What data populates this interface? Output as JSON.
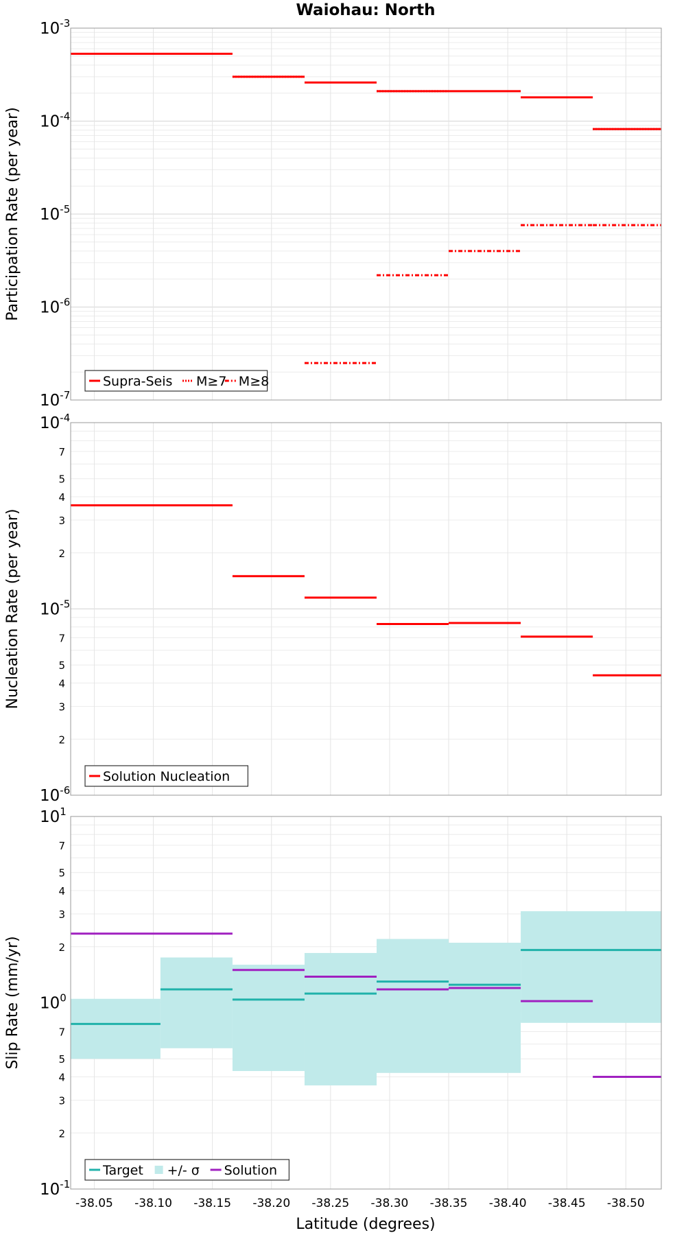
{
  "title": "Waiohau: North",
  "x_axis": {
    "label": "Latitude (degrees)",
    "range": [
      -38.03,
      -38.53
    ],
    "ticks": [
      -38.05,
      -38.1,
      -38.15,
      -38.2,
      -38.25,
      -38.3,
      -38.35,
      -38.4,
      -38.45,
      -38.5
    ],
    "tick_labels": [
      "-38.05",
      "-38.10",
      "-38.15",
      "-38.20",
      "-38.25",
      "-38.30",
      "-38.35",
      "-38.40",
      "-38.45",
      "-38.50"
    ]
  },
  "chart_data": [
    {
      "type": "line",
      "id": "participation",
      "title": "Waiohau: North",
      "ylabel": "Participation Rate (per year)",
      "yscale": "log",
      "ylim": [
        1e-07,
        0.001
      ],
      "major_ticks": [
        {
          "value": 1e-07,
          "base": "10",
          "exp": "-7"
        },
        {
          "value": 1e-06,
          "base": "10",
          "exp": "-6"
        },
        {
          "value": 1e-05,
          "base": "10",
          "exp": "-5"
        },
        {
          "value": 0.0001,
          "base": "10",
          "exp": "-4"
        },
        {
          "value": 0.001,
          "base": "10",
          "exp": "-3"
        }
      ],
      "minor_labels": [],
      "legend": {
        "position": "bottom-left",
        "entries": [
          "Supra-Seis",
          "M≥7",
          "M≥8"
        ]
      },
      "series": [
        {
          "name": "Supra-Seis",
          "color": "#ff0000",
          "dash": "solid",
          "segments": [
            [
              -38.03,
              -38.167,
              0.00053
            ],
            [
              -38.167,
              -38.228,
              0.0003
            ],
            [
              -38.228,
              -38.289,
              0.00026
            ],
            [
              -38.289,
              -38.35,
              0.00021
            ],
            [
              -38.35,
              -38.411,
              0.00021
            ],
            [
              -38.411,
              -38.472,
              0.00018
            ],
            [
              -38.472,
              -38.53,
              8.2e-05
            ]
          ]
        },
        {
          "name": "M≥7",
          "color": "#ff0000",
          "dash": "dotted",
          "segments": [
            [
              -38.167,
              -38.228,
              0.0003
            ],
            [
              -38.289,
              -38.35,
              0.00021
            ],
            [
              -38.472,
              -38.53,
              8.2e-05
            ]
          ]
        },
        {
          "name": "M≥8",
          "color": "#ff0000",
          "dash": "dashdot",
          "segments": [
            [
              -38.228,
              -38.289,
              2.5e-07
            ],
            [
              -38.289,
              -38.35,
              2.2e-06
            ],
            [
              -38.35,
              -38.411,
              4e-06
            ],
            [
              -38.411,
              -38.472,
              7.6e-06
            ],
            [
              -38.472,
              -38.53,
              7.6e-06
            ]
          ]
        }
      ]
    },
    {
      "type": "line",
      "id": "nucleation",
      "ylabel": "Nucleation Rate (per year)",
      "yscale": "log",
      "ylim": [
        1e-06,
        0.0001
      ],
      "major_ticks": [
        {
          "value": 1e-06,
          "base": "10",
          "exp": "-6"
        },
        {
          "value": 1e-05,
          "base": "10",
          "exp": "-5"
        },
        {
          "value": 0.0001,
          "base": "10",
          "exp": "-4"
        }
      ],
      "minor_labels": [
        {
          "value": 2e-06,
          "label": "2"
        },
        {
          "value": 3e-06,
          "label": "3"
        },
        {
          "value": 4e-06,
          "label": "4"
        },
        {
          "value": 5e-06,
          "label": "5"
        },
        {
          "value": 7e-06,
          "label": "7"
        },
        {
          "value": 2e-05,
          "label": "2"
        },
        {
          "value": 3e-05,
          "label": "3"
        },
        {
          "value": 4e-05,
          "label": "4"
        },
        {
          "value": 5e-05,
          "label": "5"
        },
        {
          "value": 7e-05,
          "label": "7"
        }
      ],
      "legend": {
        "position": "bottom-left",
        "entries": [
          "Solution Nucleation"
        ]
      },
      "series": [
        {
          "name": "Solution Nucleation",
          "color": "#ff0000",
          "dash": "solid",
          "segments": [
            [
              -38.03,
              -38.167,
              3.6e-05
            ],
            [
              -38.167,
              -38.228,
              1.5e-05
            ],
            [
              -38.228,
              -38.289,
              1.15e-05
            ],
            [
              -38.289,
              -38.35,
              8.3e-06
            ],
            [
              -38.35,
              -38.411,
              8.4e-06
            ],
            [
              -38.411,
              -38.472,
              7.1e-06
            ],
            [
              -38.472,
              -38.53,
              4.4e-06
            ]
          ]
        }
      ]
    },
    {
      "type": "line",
      "id": "slip",
      "ylabel": "Slip Rate (mm/yr)",
      "yscale": "log",
      "ylim": [
        0.1,
        10
      ],
      "major_ticks": [
        {
          "value": 0.1,
          "base": "10",
          "exp": "-1"
        },
        {
          "value": 1,
          "base": "10",
          "exp": "0"
        },
        {
          "value": 10,
          "base": "10",
          "exp": "1"
        }
      ],
      "minor_labels": [
        {
          "value": 0.2,
          "label": "2"
        },
        {
          "value": 0.3,
          "label": "3"
        },
        {
          "value": 0.4,
          "label": "4"
        },
        {
          "value": 0.5,
          "label": "5"
        },
        {
          "value": 0.7,
          "label": "7"
        },
        {
          "value": 2,
          "label": "2"
        },
        {
          "value": 3,
          "label": "3"
        },
        {
          "value": 4,
          "label": "4"
        },
        {
          "value": 5,
          "label": "5"
        },
        {
          "value": 7,
          "label": "7"
        }
      ],
      "legend": {
        "position": "bottom-left",
        "entries": [
          "Target",
          "+/- σ",
          "Solution"
        ]
      },
      "band": {
        "name": "+/- σ",
        "color": "#c0eaea",
        "segments": [
          [
            -38.03,
            -38.106,
            0.5,
            1.05
          ],
          [
            -38.106,
            -38.167,
            0.57,
            1.75
          ],
          [
            -38.167,
            -38.228,
            0.43,
            1.6
          ],
          [
            -38.228,
            -38.289,
            0.36,
            1.85
          ],
          [
            -38.289,
            -38.35,
            0.42,
            2.2
          ],
          [
            -38.35,
            -38.411,
            0.42,
            2.1
          ],
          [
            -38.411,
            -38.53,
            0.78,
            3.1
          ]
        ]
      },
      "series": [
        {
          "name": "Target",
          "color": "#20b2aa",
          "dash": "solid",
          "segments": [
            [
              -38.03,
              -38.106,
              0.77
            ],
            [
              -38.106,
              -38.167,
              1.18
            ],
            [
              -38.167,
              -38.228,
              1.04
            ],
            [
              -38.228,
              -38.289,
              1.12
            ],
            [
              -38.289,
              -38.35,
              1.3
            ],
            [
              -38.35,
              -38.411,
              1.25
            ],
            [
              -38.411,
              -38.53,
              1.92
            ]
          ]
        },
        {
          "name": "Solution",
          "color": "#a020c0",
          "dash": "solid",
          "segments": [
            [
              -38.03,
              -38.167,
              2.35
            ],
            [
              -38.167,
              -38.228,
              1.5
            ],
            [
              -38.228,
              -38.289,
              1.38
            ],
            [
              -38.289,
              -38.35,
              1.18
            ],
            [
              -38.35,
              -38.411,
              1.2
            ],
            [
              -38.411,
              -38.472,
              1.02
            ],
            [
              -38.472,
              -38.53,
              0.4
            ]
          ]
        }
      ]
    }
  ]
}
